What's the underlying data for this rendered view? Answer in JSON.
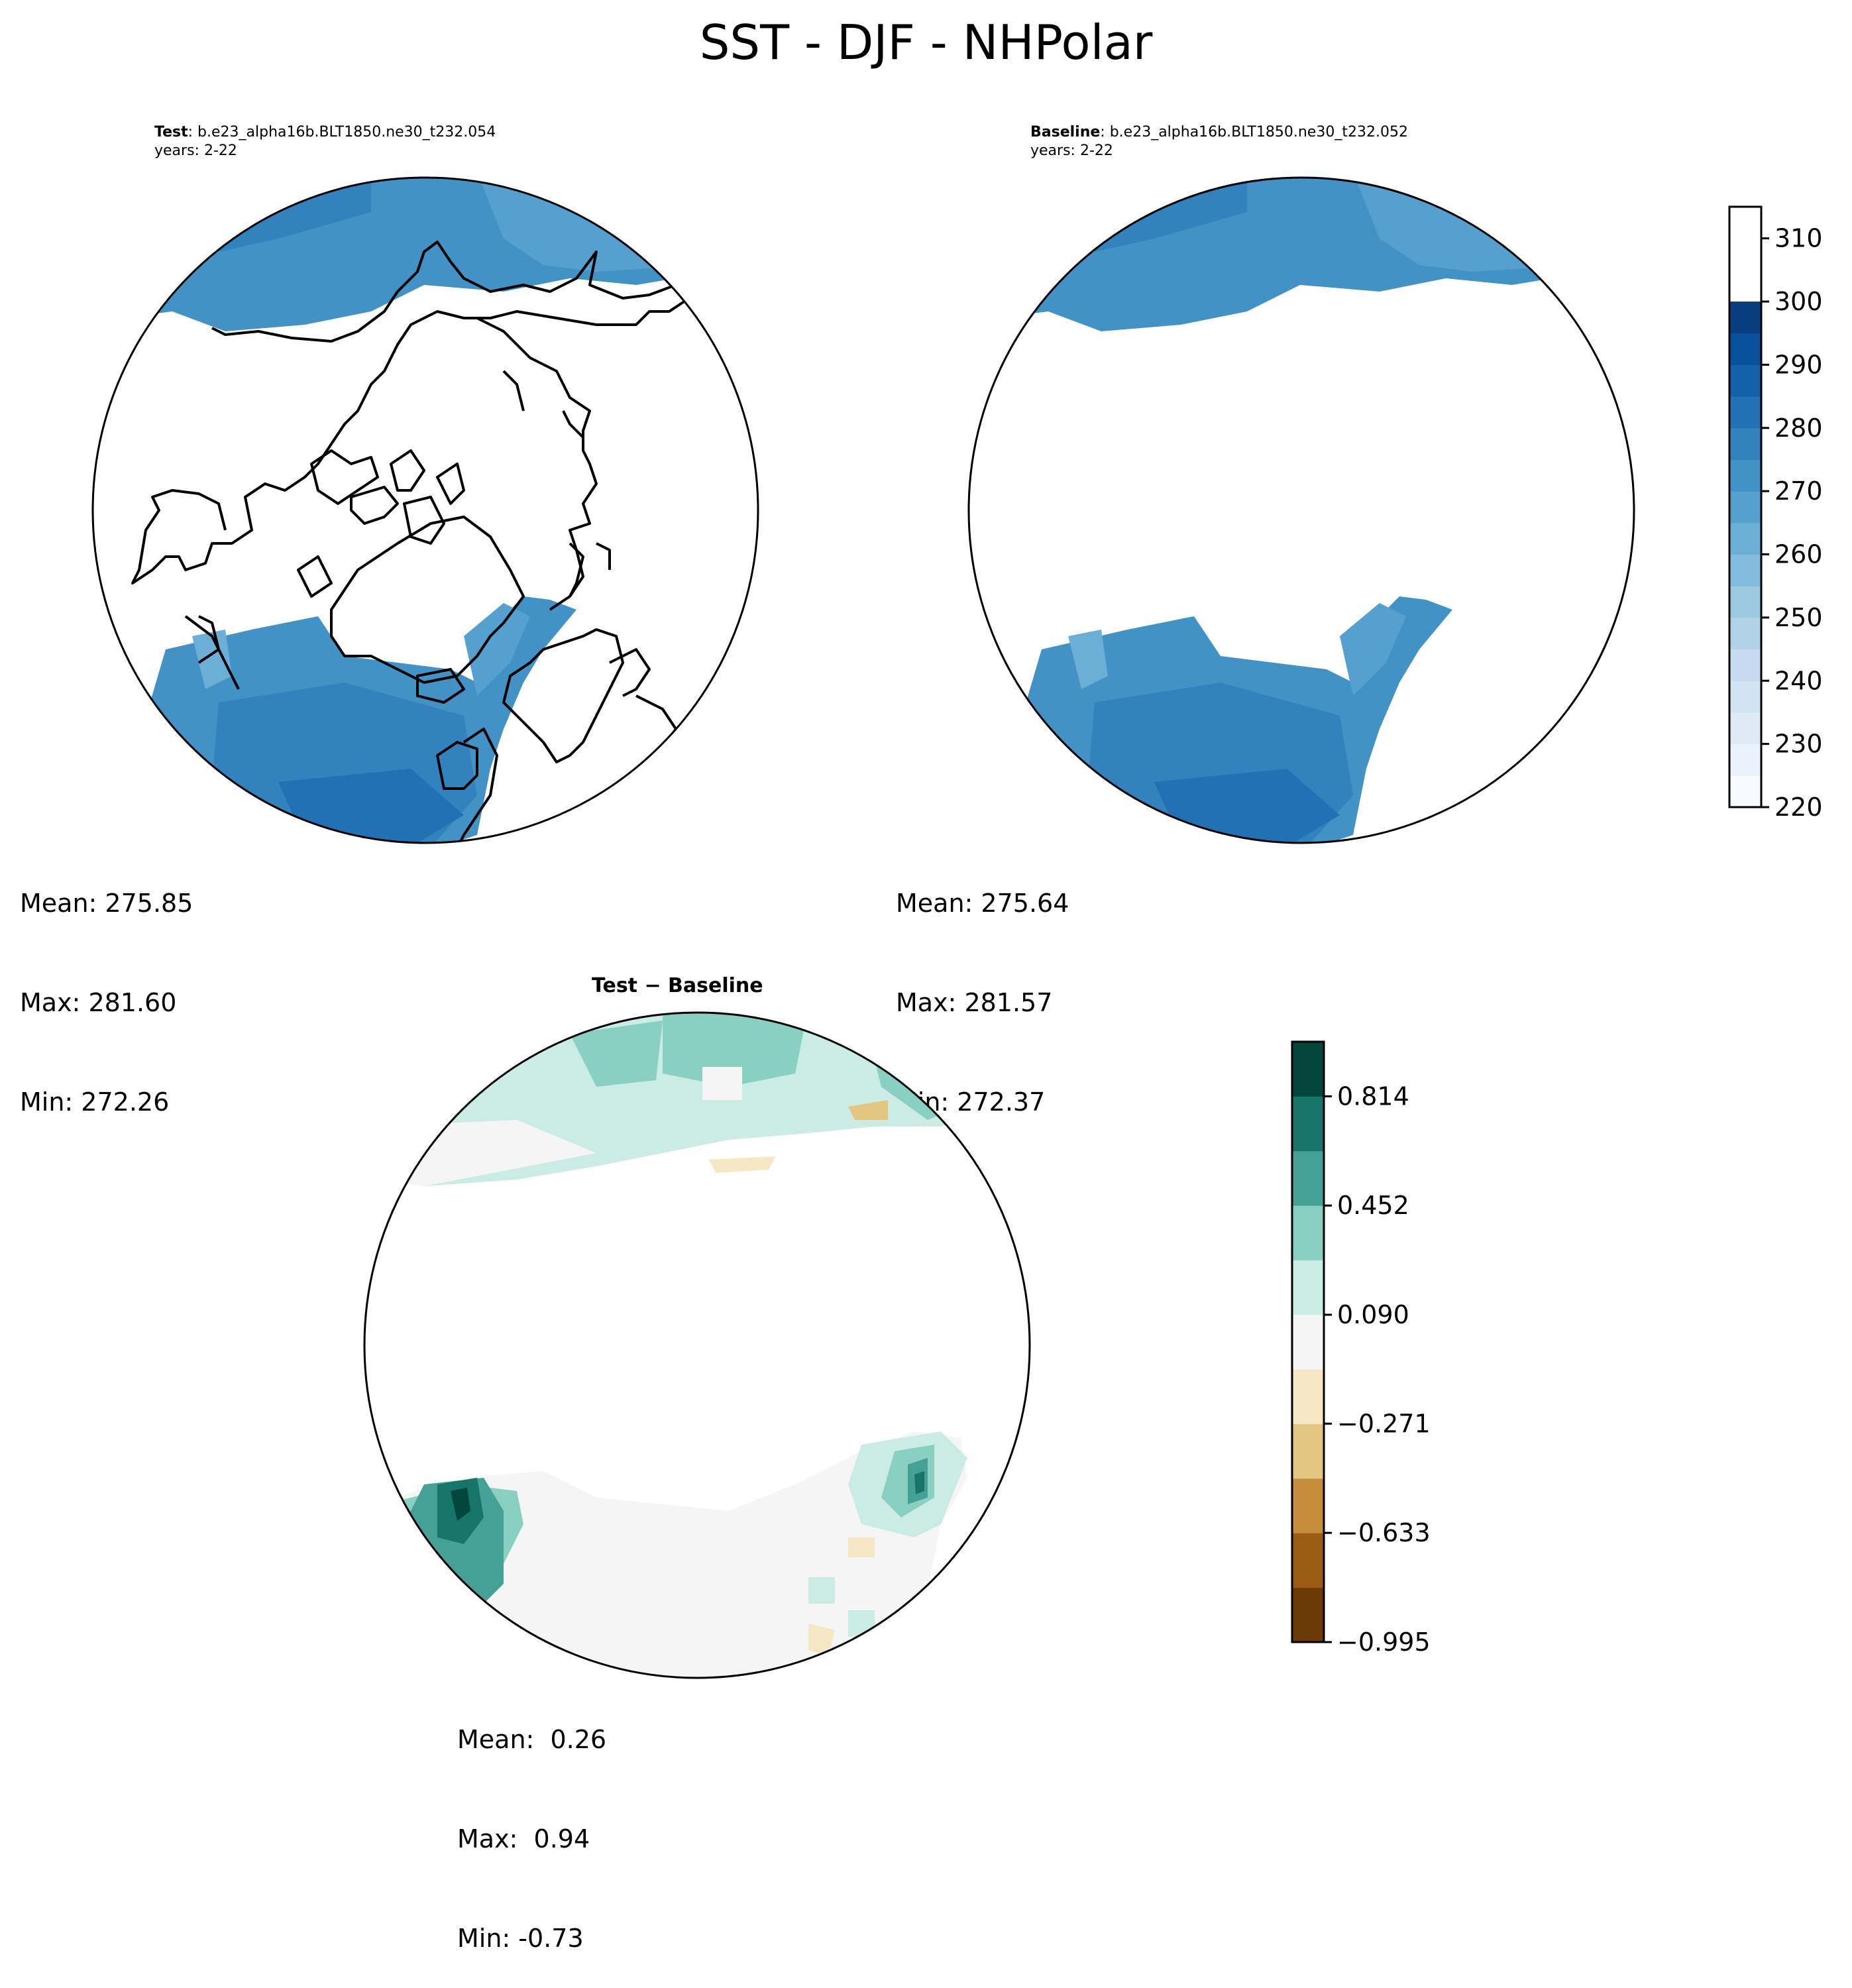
{
  "figure": {
    "title": "SST - DJF - NHPolar"
  },
  "panels": {
    "test": {
      "label": "Test",
      "case": ": b.e23_alpha16b.BLT1850.ne30_t232.054",
      "years": "years: 2-22",
      "stats": {
        "mean": "Mean: 275.85",
        "max": "Max: 281.60",
        "min": "Min: 272.26"
      }
    },
    "baseline": {
      "label": "Baseline",
      "case": ": b.e23_alpha16b.BLT1850.ne30_t232.052",
      "years": "years: 2-22",
      "stats": {
        "mean": "Mean: 275.64",
        "max": "Max: 281.57",
        "min": "Min: 272.37"
      }
    },
    "difference": {
      "title": "Test − Baseline",
      "stats": {
        "mean": "Mean:  0.26",
        "max": "Max:  0.94",
        "min": "Min: -0.73"
      }
    }
  },
  "chart_data": [
    {
      "type": "heatmap",
      "projection": "north-polar-stereographic",
      "panel": "test",
      "colormap": "Blues",
      "summary": {
        "mean": 275.85,
        "max": 281.6,
        "min": 272.26
      }
    },
    {
      "type": "heatmap",
      "projection": "north-polar-stereographic",
      "panel": "baseline",
      "colormap": "Blues",
      "summary": {
        "mean": 275.64,
        "max": 281.57,
        "min": 272.37
      }
    },
    {
      "type": "heatmap",
      "projection": "north-polar-stereographic",
      "panel": "difference",
      "colormap": "BrBG",
      "summary": {
        "mean": 0.26,
        "max": 0.94,
        "min": -0.73
      }
    }
  ],
  "colorbars": {
    "absolute": {
      "range": [
        220,
        315
      ],
      "step": 5,
      "ticks": [
        "220",
        "230",
        "240",
        "250",
        "260",
        "270",
        "280",
        "290",
        "300",
        "310"
      ],
      "colors": [
        "#f7fbff",
        "#eaf3fb",
        "#deebf7",
        "#d2e4f3",
        "#c6dbef",
        "#b2d2e8",
        "#9ecae1",
        "#82bbdb",
        "#6baed6",
        "#55a0cf",
        "#4292c6",
        "#3282bd",
        "#2171b5",
        "#1361a8",
        "#08519c",
        "#083e80"
      ]
    },
    "difference": {
      "range": [
        -0.995,
        0.995
      ],
      "ticks": [
        "−0.995",
        "−0.633",
        "−0.271",
        "0.090",
        "0.452",
        "0.814"
      ],
      "tick_values": [
        -0.995,
        -0.633,
        -0.271,
        0.09,
        0.452,
        0.814
      ],
      "colors": [
        "#6b3a06",
        "#9c5b13",
        "#c68d3c",
        "#e2c682",
        "#f5e7c3",
        "#f4f5f4",
        "#cbebe5",
        "#89d0c2",
        "#45a196",
        "#167469",
        "#03473c"
      ]
    }
  }
}
